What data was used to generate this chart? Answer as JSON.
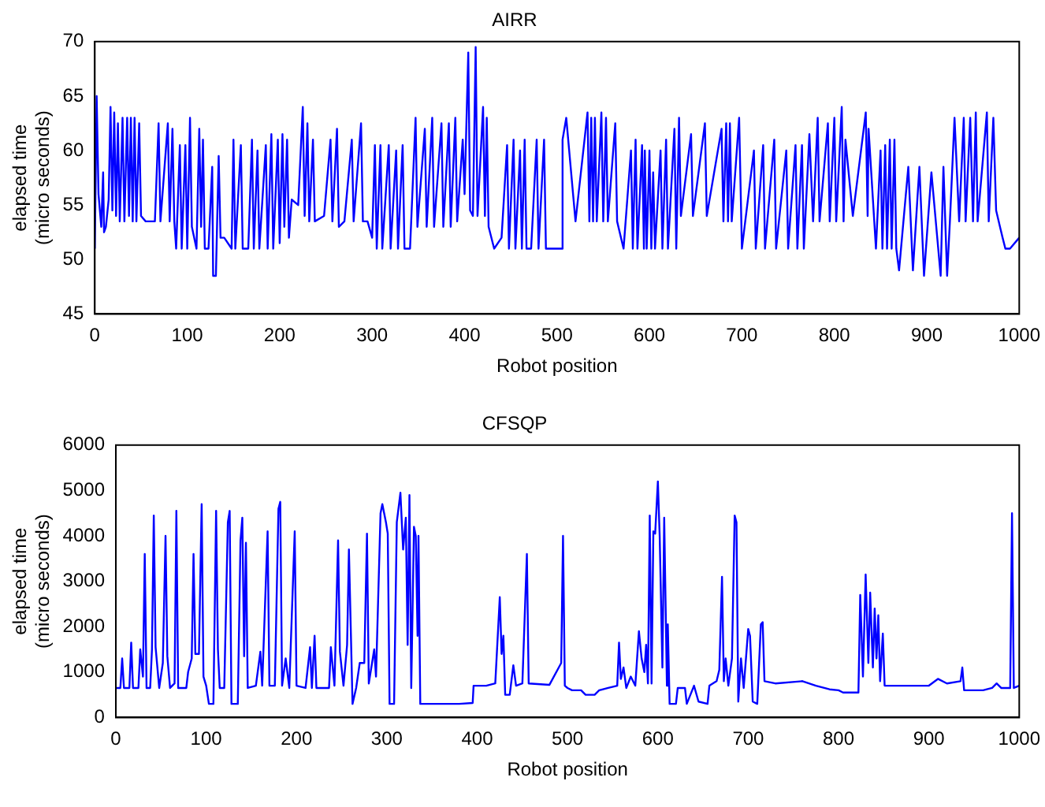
{
  "chart_data": [
    {
      "type": "line",
      "title": "AIRR",
      "xlabel": "Robot position",
      "ylabel": "elapsed time\n(micro seconds)",
      "xlim": [
        0,
        1000
      ],
      "xticks": [
        0,
        100,
        200,
        300,
        400,
        500,
        600,
        700,
        800,
        900,
        1000
      ],
      "ylim": [
        45,
        70
      ],
      "yticks": [
        45,
        50,
        55,
        60,
        65,
        70
      ],
      "x": [
        0,
        2,
        4,
        7,
        9,
        10,
        12,
        15,
        17,
        19,
        21,
        23,
        25,
        27,
        30,
        32,
        35,
        37,
        39,
        41,
        43,
        45,
        48,
        50,
        55,
        58,
        65,
        69,
        71,
        79,
        81,
        84,
        86,
        88,
        92,
        94,
        98,
        100,
        103,
        105,
        110,
        113,
        115,
        117,
        119,
        123,
        127,
        128,
        131,
        134,
        136,
        140,
        148,
        150,
        152,
        158,
        160,
        166,
        170,
        172,
        176,
        178,
        185,
        187,
        191,
        193,
        198,
        200,
        203,
        205,
        208,
        210,
        213,
        220,
        225,
        227,
        230,
        232,
        236,
        238,
        248,
        255,
        257,
        262,
        264,
        270,
        278,
        280,
        288,
        290,
        295,
        300,
        303,
        305,
        309,
        311,
        318,
        320,
        326,
        328,
        333,
        335,
        341,
        347,
        349,
        357,
        359,
        365,
        367,
        375,
        377,
        383,
        385,
        390,
        392,
        398,
        400,
        404,
        406,
        409,
        412,
        414,
        420,
        422,
        424,
        426,
        432,
        440,
        446,
        448,
        453,
        455,
        460,
        462,
        465,
        467,
        472,
        478,
        480,
        486,
        488,
        495,
        500,
        505,
        506,
        510,
        520,
        533,
        535,
        537,
        539,
        541,
        543,
        548,
        550,
        553,
        555,
        563,
        565,
        572,
        580,
        582,
        585,
        587,
        592,
        594,
        595,
        597,
        600,
        602,
        604,
        606,
        612,
        614,
        618,
        620,
        627,
        629,
        632,
        634,
        645,
        647,
        660,
        662,
        678,
        680,
        683,
        685,
        687,
        689,
        697,
        700,
        713,
        715,
        723,
        725,
        735,
        737,
        748,
        750,
        758,
        760,
        765,
        767,
        773,
        777,
        782,
        784,
        793,
        795,
        800,
        802,
        808,
        810,
        812,
        820,
        834,
        836,
        837,
        845,
        850,
        852,
        855,
        857,
        860,
        862,
        865,
        867,
        870,
        880,
        885,
        892,
        897,
        905,
        915,
        918,
        922,
        925,
        930,
        935,
        940,
        942,
        947,
        950,
        953,
        955,
        965,
        967,
        972,
        975,
        982,
        985,
        990,
        1000
      ],
      "series": [
        {
          "color": "#0000ff",
          "values": [
            51,
            65,
            56,
            53,
            58,
            52.5,
            53,
            55.5,
            64,
            54.5,
            63.5,
            54,
            62.5,
            53.5,
            63,
            53.5,
            63,
            54,
            63,
            53.5,
            63,
            53.5,
            62.5,
            54,
            53.5,
            53.5,
            53.5,
            62.5,
            53.5,
            62.5,
            53.5,
            62,
            53.5,
            51,
            60.5,
            51,
            60.5,
            51,
            63,
            53,
            51,
            62,
            53,
            61,
            51,
            51,
            58.5,
            48.5,
            48.5,
            59.5,
            52,
            52,
            51,
            61,
            51,
            60.5,
            51,
            51,
            61,
            51,
            60,
            51,
            60.5,
            51,
            61.5,
            51,
            61,
            51.5,
            61.5,
            53,
            61,
            52,
            55.5,
            55,
            64,
            54,
            62.5,
            53.5,
            61,
            53.5,
            54,
            61,
            53.5,
            62,
            53,
            53.5,
            61,
            53.5,
            62.5,
            53.5,
            53.5,
            52,
            60.5,
            51,
            60.5,
            51,
            60.5,
            51,
            60,
            51,
            60.5,
            51,
            51,
            63,
            53,
            62,
            53,
            63,
            53,
            62.5,
            53,
            62.5,
            53,
            63,
            53.5,
            61,
            56,
            69,
            54.5,
            54,
            69.5,
            54,
            64,
            54,
            63,
            53,
            51,
            52,
            60.5,
            51,
            61,
            51,
            60,
            51,
            61,
            51,
            51,
            61,
            51,
            61,
            51,
            51,
            51,
            51,
            61,
            63,
            53.5,
            63.5,
            53.5,
            63,
            53.5,
            63,
            53.5,
            63.5,
            53.5,
            63,
            53.5,
            62.5,
            53.5,
            51,
            60,
            51,
            61,
            51,
            60.5,
            51,
            60,
            51,
            60,
            51,
            58,
            51,
            60,
            51,
            61,
            51,
            62,
            51,
            63,
            54,
            61.5,
            54,
            62.5,
            54,
            62,
            53.5,
            62.5,
            53.5,
            62.5,
            53.5,
            63,
            51,
            60,
            51,
            60.5,
            51,
            61,
            51,
            60,
            51,
            60.5,
            51,
            60.5,
            51,
            61.5,
            53.5,
            63,
            53.5,
            62.5,
            53.5,
            63,
            53.5,
            64,
            53.5,
            61,
            54,
            63.5,
            54,
            62,
            51,
            60,
            51,
            60.5,
            51,
            61,
            51,
            61,
            51,
            49,
            58.5,
            49,
            58.5,
            48.5,
            58,
            48.5,
            58.5,
            48.5,
            53.5,
            63,
            53.5,
            63,
            53.5,
            63,
            53.5,
            63.5,
            53.5,
            63.5,
            53.5,
            63,
            54.5,
            52,
            51,
            51,
            52
          ]
        }
      ]
    },
    {
      "type": "line",
      "title": "CFSQP",
      "xlabel": "Robot position",
      "ylabel": "elapsed time\n(micro seconds)",
      "xlim": [
        0,
        1000
      ],
      "xticks": [
        0,
        100,
        200,
        300,
        400,
        500,
        600,
        700,
        800,
        900,
        1000
      ],
      "ylim": [
        0,
        6000
      ],
      "yticks": [
        0,
        1000,
        2000,
        3000,
        4000,
        5000,
        6000
      ],
      "x": [
        0,
        5,
        7,
        9,
        15,
        17,
        19,
        25,
        27,
        30,
        32,
        34,
        38,
        40,
        42,
        44,
        48,
        52,
        55,
        57,
        60,
        65,
        67,
        69,
        78,
        80,
        84,
        86,
        88,
        92,
        95,
        97,
        100,
        103,
        108,
        111,
        113,
        115,
        120,
        124,
        126,
        128,
        135,
        138,
        140,
        142,
        144,
        146,
        155,
        160,
        162,
        168,
        170,
        176,
        180,
        182,
        184,
        188,
        192,
        198,
        200,
        210,
        215,
        217,
        220,
        222,
        236,
        238,
        242,
        246,
        248,
        252,
        256,
        258,
        262,
        266,
        270,
        275,
        278,
        280,
        286,
        288,
        293,
        295,
        297,
        299,
        301,
        303,
        308,
        311,
        315,
        318,
        321,
        323,
        325,
        327,
        330,
        332,
        334,
        335,
        337,
        360,
        380,
        395,
        396,
        410,
        420,
        425,
        427,
        429,
        431,
        436,
        440,
        443,
        450,
        455,
        457,
        480,
        493,
        495,
        497,
        500,
        505,
        515,
        520,
        530,
        535,
        545,
        555,
        557,
        559,
        562,
        565,
        570,
        575,
        579,
        582,
        585,
        587,
        589,
        591,
        593,
        595,
        597,
        600,
        602,
        605,
        607,
        610,
        611,
        613,
        620,
        622,
        630,
        632,
        640,
        645,
        655,
        657,
        665,
        668,
        671,
        673,
        675,
        678,
        682,
        685,
        687,
        689,
        692,
        695,
        700,
        702,
        705,
        710,
        714,
        716,
        718,
        730,
        760,
        775,
        790,
        800,
        805,
        822,
        824,
        827,
        830,
        833,
        835,
        838,
        840,
        842,
        844,
        846,
        849,
        851,
        880,
        900,
        910,
        920,
        935,
        937,
        939,
        960,
        970,
        975,
        980,
        990,
        992,
        994,
        1000
      ],
      "series": [
        {
          "color": "#0000ff",
          "values": [
            650,
            650,
            1300,
            650,
            650,
            1650,
            650,
            650,
            1500,
            900,
            3600,
            650,
            650,
            1500,
            4450,
            1550,
            650,
            1200,
            4000,
            1350,
            650,
            750,
            4550,
            650,
            650,
            1000,
            1300,
            3600,
            1400,
            1400,
            4700,
            900,
            700,
            300,
            300,
            4550,
            1500,
            650,
            650,
            4300,
            4550,
            300,
            300,
            3900,
            4400,
            1350,
            3850,
            650,
            700,
            1450,
            700,
            4100,
            700,
            700,
            4600,
            4750,
            700,
            1300,
            650,
            4100,
            700,
            650,
            1550,
            650,
            1800,
            650,
            650,
            1550,
            700,
            3900,
            1450,
            700,
            1600,
            3700,
            300,
            650,
            1200,
            1200,
            4050,
            750,
            1500,
            900,
            4500,
            4700,
            4500,
            4300,
            4050,
            300,
            300,
            4300,
            4950,
            3700,
            4400,
            1600,
            4900,
            650,
            4200,
            4000,
            1800,
            4000,
            300,
            300,
            300,
            320,
            700,
            700,
            750,
            2650,
            1400,
            1800,
            500,
            500,
            1150,
            700,
            750,
            3600,
            750,
            720,
            1200,
            4000,
            700,
            650,
            600,
            600,
            500,
            500,
            600,
            650,
            700,
            1650,
            850,
            1100,
            650,
            900,
            700,
            1900,
            1300,
            1000,
            1600,
            750,
            4450,
            750,
            4100,
            4050,
            5200,
            4000,
            1100,
            4400,
            700,
            2050,
            300,
            300,
            650,
            650,
            300,
            700,
            350,
            300,
            700,
            800,
            1050,
            3100,
            800,
            1300,
            700,
            1300,
            4450,
            4300,
            350,
            1300,
            650,
            1950,
            1800,
            350,
            300,
            2050,
            2100,
            800,
            750,
            800,
            700,
            620,
            600,
            550,
            550,
            2700,
            900,
            3150,
            1200,
            2750,
            1100,
            2400,
            1300,
            2250,
            800,
            1850,
            700,
            700,
            700,
            850,
            750,
            800,
            1100,
            600,
            600,
            650,
            750,
            650,
            650,
            4500,
            650,
            700
          ]
        }
      ]
    }
  ]
}
